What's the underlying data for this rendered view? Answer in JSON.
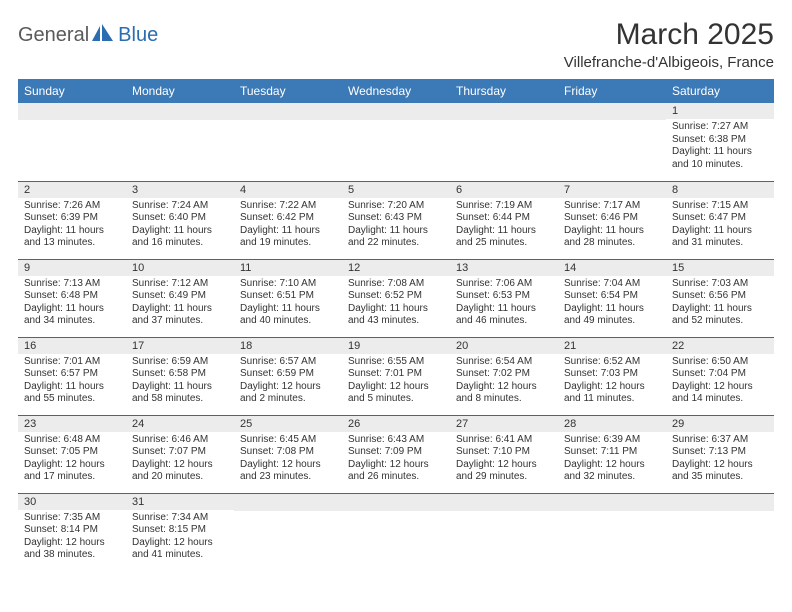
{
  "logo": {
    "part1": "General",
    "part2": "Blue"
  },
  "title": "March 2025",
  "location": "Villefranche-d'Albigeois, France",
  "colors": {
    "header_bg": "#3b79b7",
    "border": "#2a6db0",
    "daynum_bg": "#ececec",
    "text": "#333333"
  },
  "weekdays": [
    "Sunday",
    "Monday",
    "Tuesday",
    "Wednesday",
    "Thursday",
    "Friday",
    "Saturday"
  ],
  "weeks": [
    [
      null,
      null,
      null,
      null,
      null,
      null,
      {
        "n": "1",
        "sr": "7:27 AM",
        "ss": "6:38 PM",
        "dl": "11 hours and 10 minutes."
      }
    ],
    [
      {
        "n": "2",
        "sr": "7:26 AM",
        "ss": "6:39 PM",
        "dl": "11 hours and 13 minutes."
      },
      {
        "n": "3",
        "sr": "7:24 AM",
        "ss": "6:40 PM",
        "dl": "11 hours and 16 minutes."
      },
      {
        "n": "4",
        "sr": "7:22 AM",
        "ss": "6:42 PM",
        "dl": "11 hours and 19 minutes."
      },
      {
        "n": "5",
        "sr": "7:20 AM",
        "ss": "6:43 PM",
        "dl": "11 hours and 22 minutes."
      },
      {
        "n": "6",
        "sr": "7:19 AM",
        "ss": "6:44 PM",
        "dl": "11 hours and 25 minutes."
      },
      {
        "n": "7",
        "sr": "7:17 AM",
        "ss": "6:46 PM",
        "dl": "11 hours and 28 minutes."
      },
      {
        "n": "8",
        "sr": "7:15 AM",
        "ss": "6:47 PM",
        "dl": "11 hours and 31 minutes."
      }
    ],
    [
      {
        "n": "9",
        "sr": "7:13 AM",
        "ss": "6:48 PM",
        "dl": "11 hours and 34 minutes."
      },
      {
        "n": "10",
        "sr": "7:12 AM",
        "ss": "6:49 PM",
        "dl": "11 hours and 37 minutes."
      },
      {
        "n": "11",
        "sr": "7:10 AM",
        "ss": "6:51 PM",
        "dl": "11 hours and 40 minutes."
      },
      {
        "n": "12",
        "sr": "7:08 AM",
        "ss": "6:52 PM",
        "dl": "11 hours and 43 minutes."
      },
      {
        "n": "13",
        "sr": "7:06 AM",
        "ss": "6:53 PM",
        "dl": "11 hours and 46 minutes."
      },
      {
        "n": "14",
        "sr": "7:04 AM",
        "ss": "6:54 PM",
        "dl": "11 hours and 49 minutes."
      },
      {
        "n": "15",
        "sr": "7:03 AM",
        "ss": "6:56 PM",
        "dl": "11 hours and 52 minutes."
      }
    ],
    [
      {
        "n": "16",
        "sr": "7:01 AM",
        "ss": "6:57 PM",
        "dl": "11 hours and 55 minutes."
      },
      {
        "n": "17",
        "sr": "6:59 AM",
        "ss": "6:58 PM",
        "dl": "11 hours and 58 minutes."
      },
      {
        "n": "18",
        "sr": "6:57 AM",
        "ss": "6:59 PM",
        "dl": "12 hours and 2 minutes."
      },
      {
        "n": "19",
        "sr": "6:55 AM",
        "ss": "7:01 PM",
        "dl": "12 hours and 5 minutes."
      },
      {
        "n": "20",
        "sr": "6:54 AM",
        "ss": "7:02 PM",
        "dl": "12 hours and 8 minutes."
      },
      {
        "n": "21",
        "sr": "6:52 AM",
        "ss": "7:03 PM",
        "dl": "12 hours and 11 minutes."
      },
      {
        "n": "22",
        "sr": "6:50 AM",
        "ss": "7:04 PM",
        "dl": "12 hours and 14 minutes."
      }
    ],
    [
      {
        "n": "23",
        "sr": "6:48 AM",
        "ss": "7:05 PM",
        "dl": "12 hours and 17 minutes."
      },
      {
        "n": "24",
        "sr": "6:46 AM",
        "ss": "7:07 PM",
        "dl": "12 hours and 20 minutes."
      },
      {
        "n": "25",
        "sr": "6:45 AM",
        "ss": "7:08 PM",
        "dl": "12 hours and 23 minutes."
      },
      {
        "n": "26",
        "sr": "6:43 AM",
        "ss": "7:09 PM",
        "dl": "12 hours and 26 minutes."
      },
      {
        "n": "27",
        "sr": "6:41 AM",
        "ss": "7:10 PM",
        "dl": "12 hours and 29 minutes."
      },
      {
        "n": "28",
        "sr": "6:39 AM",
        "ss": "7:11 PM",
        "dl": "12 hours and 32 minutes."
      },
      {
        "n": "29",
        "sr": "6:37 AM",
        "ss": "7:13 PM",
        "dl": "12 hours and 35 minutes."
      }
    ],
    [
      {
        "n": "30",
        "sr": "7:35 AM",
        "ss": "8:14 PM",
        "dl": "12 hours and 38 minutes."
      },
      {
        "n": "31",
        "sr": "7:34 AM",
        "ss": "8:15 PM",
        "dl": "12 hours and 41 minutes."
      },
      null,
      null,
      null,
      null,
      null
    ]
  ],
  "labels": {
    "sunrise": "Sunrise:",
    "sunset": "Sunset:",
    "daylight": "Daylight:"
  }
}
